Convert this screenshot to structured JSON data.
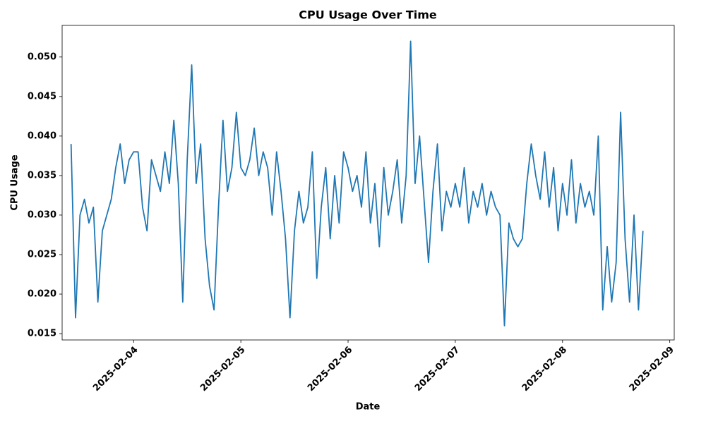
{
  "chart_data": {
    "type": "line",
    "title": "CPU Usage Over Time",
    "xlabel": "Date",
    "ylabel": "CPU Usage",
    "x": [
      "2025-02-03 10:00",
      "2025-02-03 11:00",
      "2025-02-03 12:00",
      "2025-02-03 13:00",
      "2025-02-03 14:00",
      "2025-02-03 15:00",
      "2025-02-03 16:00",
      "2025-02-03 17:00",
      "2025-02-03 18:00",
      "2025-02-03 19:00",
      "2025-02-03 20:00",
      "2025-02-03 21:00",
      "2025-02-03 22:00",
      "2025-02-03 23:00",
      "2025-02-04 00:00",
      "2025-02-04 01:00",
      "2025-02-04 02:00",
      "2025-02-04 03:00",
      "2025-02-04 04:00",
      "2025-02-04 05:00",
      "2025-02-04 06:00",
      "2025-02-04 07:00",
      "2025-02-04 08:00",
      "2025-02-04 09:00",
      "2025-02-04 10:00",
      "2025-02-04 11:00",
      "2025-02-04 12:00",
      "2025-02-04 13:00",
      "2025-02-04 14:00",
      "2025-02-04 15:00",
      "2025-02-04 16:00",
      "2025-02-04 17:00",
      "2025-02-04 18:00",
      "2025-02-04 19:00",
      "2025-02-04 20:00",
      "2025-02-04 21:00",
      "2025-02-04 22:00",
      "2025-02-04 23:00",
      "2025-02-05 00:00",
      "2025-02-05 01:00",
      "2025-02-05 02:00",
      "2025-02-05 03:00",
      "2025-02-05 04:00",
      "2025-02-05 05:00",
      "2025-02-05 06:00",
      "2025-02-05 07:00",
      "2025-02-05 08:00",
      "2025-02-05 09:00",
      "2025-02-05 10:00",
      "2025-02-05 11:00",
      "2025-02-05 12:00",
      "2025-02-05 13:00",
      "2025-02-05 14:00",
      "2025-02-05 15:00",
      "2025-02-05 16:00",
      "2025-02-05 17:00",
      "2025-02-05 18:00",
      "2025-02-05 19:00",
      "2025-02-05 20:00",
      "2025-02-05 21:00",
      "2025-02-05 22:00",
      "2025-02-05 23:00",
      "2025-02-06 00:00",
      "2025-02-06 01:00",
      "2025-02-06 02:00",
      "2025-02-06 03:00",
      "2025-02-06 04:00",
      "2025-02-06 05:00",
      "2025-02-06 06:00",
      "2025-02-06 07:00",
      "2025-02-06 08:00",
      "2025-02-06 09:00",
      "2025-02-06 10:00",
      "2025-02-06 11:00",
      "2025-02-06 12:00",
      "2025-02-06 13:00",
      "2025-02-06 14:00",
      "2025-02-06 15:00",
      "2025-02-06 16:00",
      "2025-02-06 17:00",
      "2025-02-06 18:00",
      "2025-02-06 19:00",
      "2025-02-06 20:00",
      "2025-02-06 21:00",
      "2025-02-06 22:00",
      "2025-02-06 23:00",
      "2025-02-07 00:00",
      "2025-02-07 01:00",
      "2025-02-07 02:00",
      "2025-02-07 03:00",
      "2025-02-07 04:00",
      "2025-02-07 05:00",
      "2025-02-07 06:00",
      "2025-02-07 07:00",
      "2025-02-07 08:00",
      "2025-02-07 09:00",
      "2025-02-07 10:00",
      "2025-02-07 11:00",
      "2025-02-07 12:00",
      "2025-02-07 13:00",
      "2025-02-07 14:00",
      "2025-02-07 15:00",
      "2025-02-07 16:00",
      "2025-02-07 17:00",
      "2025-02-07 18:00",
      "2025-02-07 19:00",
      "2025-02-07 20:00",
      "2025-02-07 21:00",
      "2025-02-07 22:00",
      "2025-02-07 23:00",
      "2025-02-08 00:00",
      "2025-02-08 01:00",
      "2025-02-08 02:00",
      "2025-02-08 03:00",
      "2025-02-08 04:00",
      "2025-02-08 05:00",
      "2025-02-08 06:00",
      "2025-02-08 07:00",
      "2025-02-08 08:00",
      "2025-02-08 09:00",
      "2025-02-08 10:00",
      "2025-02-08 11:00",
      "2025-02-08 12:00",
      "2025-02-08 13:00",
      "2025-02-08 14:00",
      "2025-02-08 15:00",
      "2025-02-08 16:00",
      "2025-02-08 17:00",
      "2025-02-08 18:00"
    ],
    "series": [
      {
        "name": "CPU Usage",
        "color": "#1f77b4",
        "values": [
          0.039,
          0.017,
          0.03,
          0.032,
          0.029,
          0.031,
          0.019,
          0.028,
          0.03,
          0.032,
          0.036,
          0.039,
          0.034,
          0.037,
          0.038,
          0.038,
          0.031,
          0.028,
          0.037,
          0.035,
          0.033,
          0.038,
          0.034,
          0.042,
          0.034,
          0.019,
          0.037,
          0.049,
          0.034,
          0.039,
          0.027,
          0.021,
          0.018,
          0.031,
          0.042,
          0.033,
          0.036,
          0.043,
          0.036,
          0.035,
          0.037,
          0.041,
          0.035,
          0.038,
          0.036,
          0.03,
          0.038,
          0.033,
          0.027,
          0.017,
          0.028,
          0.033,
          0.029,
          0.031,
          0.038,
          0.022,
          0.031,
          0.036,
          0.027,
          0.035,
          0.029,
          0.038,
          0.036,
          0.033,
          0.035,
          0.031,
          0.038,
          0.029,
          0.034,
          0.026,
          0.036,
          0.03,
          0.033,
          0.037,
          0.029,
          0.035,
          0.052,
          0.034,
          0.04,
          0.032,
          0.024,
          0.033,
          0.039,
          0.028,
          0.033,
          0.031,
          0.034,
          0.031,
          0.036,
          0.029,
          0.033,
          0.031,
          0.034,
          0.03,
          0.033,
          0.031,
          0.03,
          0.016,
          0.029,
          0.027,
          0.026,
          0.027,
          0.034,
          0.039,
          0.035,
          0.032,
          0.038,
          0.031,
          0.036,
          0.028,
          0.034,
          0.03,
          0.037,
          0.029,
          0.034,
          0.031,
          0.033,
          0.03,
          0.04,
          0.018,
          0.026,
          0.019,
          0.024,
          0.043,
          0.027,
          0.019,
          0.03,
          0.018,
          0.028
        ]
      }
    ],
    "xlim": [
      "2025-02-03 08:00",
      "2025-02-09 01:00"
    ],
    "xticks": [
      "2025-02-04",
      "2025-02-05",
      "2025-02-06",
      "2025-02-07",
      "2025-02-08",
      "2025-02-09"
    ],
    "ylim": [
      0.0142,
      0.054
    ],
    "yticks": [
      0.015,
      {
        "value": 0.02,
        "label": "0.020"
      },
      0.025,
      {
        "value": 0.03,
        "label": "0.030"
      },
      0.035,
      {
        "value": 0.04,
        "label": "0.040"
      },
      0.045,
      {
        "value": 0.05,
        "label": "0.050"
      }
    ],
    "grid": false
  }
}
